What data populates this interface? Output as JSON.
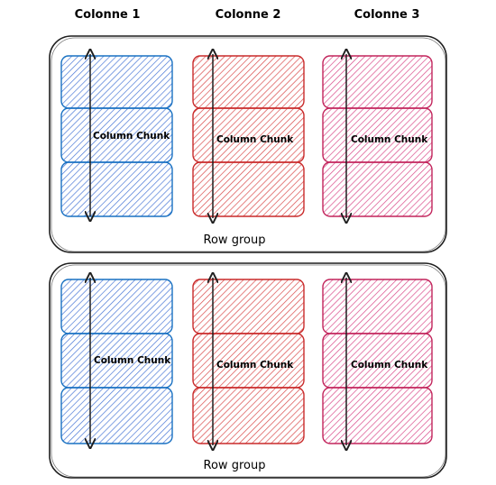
{
  "columns": [
    {
      "title": "Colonne 1",
      "color": "#1971c2",
      "fill": "#4a78d6"
    },
    {
      "title": "Colonne 2",
      "color": "#c92a2a",
      "fill": "#d94b4b"
    },
    {
      "title": "Colonne 3",
      "color": "#c2255c",
      "fill": "#d94a8a"
    }
  ],
  "row_groups": [
    {
      "label": "Row group",
      "chunk_labels": [
        "Column  Chunk",
        "Column Chunk",
        "Column Chunk"
      ]
    },
    {
      "label": "Row group",
      "chunk_labels": [
        "Column Chunk",
        "Column Chunk",
        "Column Chunk"
      ]
    }
  ],
  "colors": {
    "stroke": "#1e1e1e",
    "background": "#ffffff"
  }
}
